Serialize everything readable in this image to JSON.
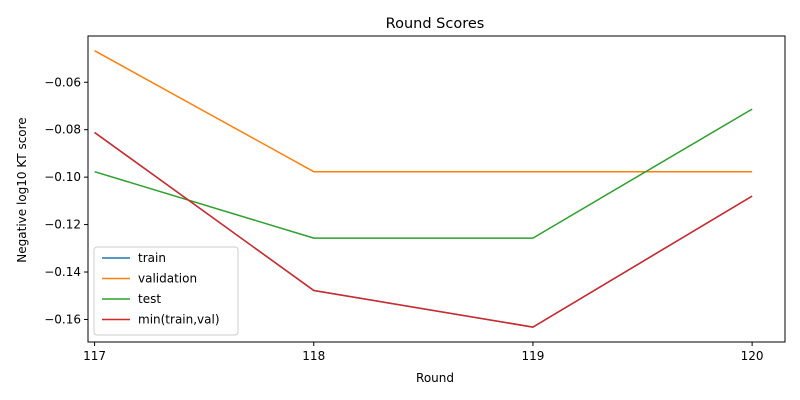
{
  "chart_data": {
    "type": "line",
    "title": "Round Scores",
    "xlabel": "Round",
    "ylabel": "Negative log10 KT score",
    "x": [
      117,
      118,
      119,
      120
    ],
    "xlim": [
      116.97,
      120.15
    ],
    "ylim": [
      -0.1695,
      -0.0405
    ],
    "xticks": [
      117,
      118,
      119,
      120
    ],
    "yticks": [
      -0.16,
      -0.14,
      -0.12,
      -0.1,
      -0.08,
      -0.06
    ],
    "ytick_labels": [
      "−0.16",
      "−0.14",
      "−0.12",
      "−0.10",
      "−0.08",
      "−0.06"
    ],
    "grid": false,
    "legend_position": "lower-left",
    "series": [
      {
        "name": "train",
        "color": "#1f77b4",
        "values": [
          -0.0812,
          -0.1478,
          -0.1632,
          -0.108
        ]
      },
      {
        "name": "validation",
        "color": "#ff7f0e",
        "values": [
          -0.0467,
          -0.0977,
          -0.0977,
          -0.0977
        ]
      },
      {
        "name": "test",
        "color": "#2ca02c",
        "values": [
          -0.0977,
          -0.1257,
          -0.1257,
          -0.0713
        ]
      },
      {
        "name": "min(train,val)",
        "color": "#d62728",
        "values": [
          -0.0812,
          -0.1478,
          -0.1632,
          -0.108
        ]
      }
    ]
  }
}
